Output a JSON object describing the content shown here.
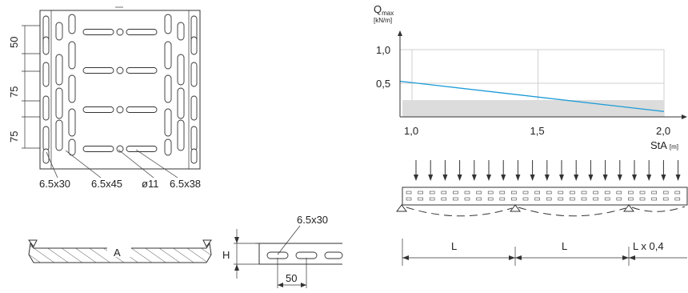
{
  "top_view": {
    "dims": [
      "50",
      "75",
      "75"
    ],
    "callouts": [
      "6.5x30",
      "6.5x45",
      "ø11",
      "6.5x38"
    ]
  },
  "section": {
    "label": "A"
  },
  "side_view": {
    "h_label": "H",
    "slot_label": "6.5x30",
    "pitch_label": "50"
  },
  "load_chart": {
    "y_title": "Q",
    "y_title_sub": "max",
    "y_unit": "[kN/m]",
    "x_title": "StA",
    "x_unit": "[m]",
    "y_ticks": [
      "1,0",
      "0,5"
    ],
    "x_ticks": [
      "1,0",
      "1,5",
      "2,0"
    ]
  },
  "chart_data": {
    "type": "line",
    "title": "",
    "xlabel": "StA [m]",
    "ylabel": "Qmax [kN/m]",
    "xlim": [
      0.95,
      2.1
    ],
    "ylim": [
      0,
      1.25
    ],
    "series": [
      {
        "x": [
          0.95,
          2.0
        ],
        "y": [
          0.53,
          0.08
        ]
      }
    ],
    "shaded_band": {
      "y": [
        0,
        0.25
      ]
    },
    "grid": true,
    "colors": {
      "line": "#1a9ad6",
      "band": "#dcdcdc"
    }
  },
  "span_diagram": {
    "spans": [
      "L",
      "L",
      "L x 0,4"
    ]
  }
}
